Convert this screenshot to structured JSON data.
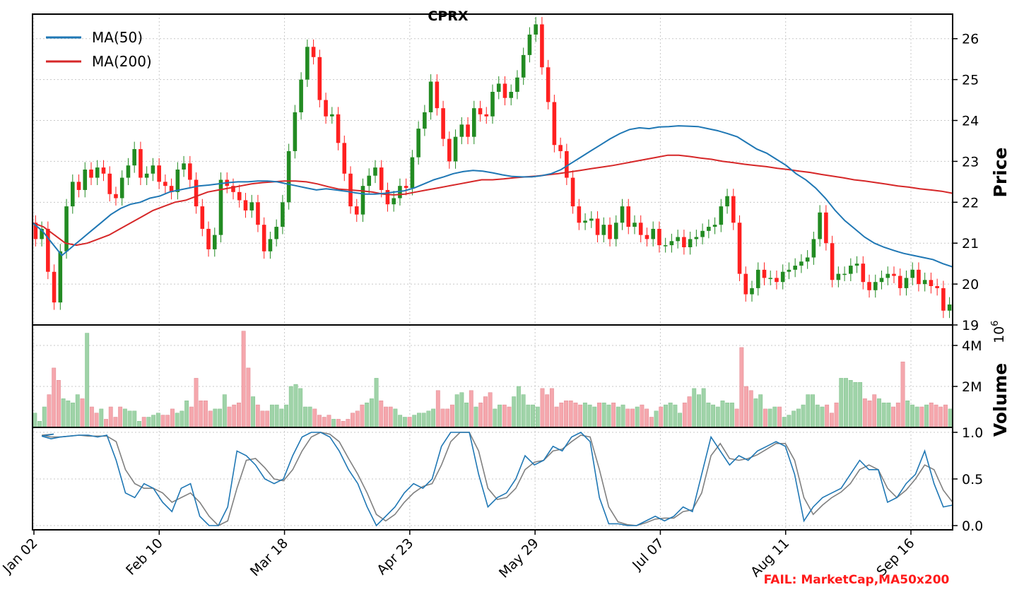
{
  "chart_data": {
    "type": "candlestick",
    "title": "CPRX",
    "status_text": "FAIL: MarketCap,MA50x200",
    "x_tick_labels": [
      "Jan 02",
      "Feb 10",
      "Mar 18",
      "Apr 23",
      "May 29",
      "Jul 07",
      "Aug 11",
      "Sep 16"
    ],
    "colors": {
      "up": "#228b22",
      "down": "#ff2020",
      "ma50": "#1f77b4",
      "ma200": "#d62728",
      "volume_up": "#9fd3a8",
      "volume_down": "#f5a7ad",
      "k_line": "#1f77b4",
      "d_line": "#808080"
    },
    "price_panel": {
      "ylabel": "Price",
      "ylim": [
        19,
        26.6
      ],
      "yticks": [
        "19",
        "20",
        "21",
        "22",
        "23",
        "24",
        "25",
        "26"
      ],
      "legend": [
        {
          "name": "MA(50)",
          "color": "#1f77b4"
        },
        {
          "name": "MA(200)",
          "color": "#d62728"
        }
      ],
      "closes": [
        21.1,
        21.35,
        20.3,
        19.55,
        20.8,
        21.9,
        22.5,
        22.3,
        22.8,
        22.6,
        22.85,
        22.7,
        22.2,
        22.1,
        22.6,
        22.9,
        23.3,
        22.6,
        22.7,
        22.9,
        22.5,
        22.4,
        22.25,
        22.8,
        22.95,
        22.55,
        21.9,
        21.35,
        20.85,
        21.2,
        22.55,
        22.4,
        22.25,
        22.05,
        21.8,
        22.0,
        21.45,
        20.8,
        21.1,
        21.4,
        22.0,
        23.25,
        24.2,
        25.0,
        25.8,
        25.55,
        24.5,
        24.1,
        24.15,
        23.45,
        22.7,
        21.9,
        21.7,
        22.4,
        22.65,
        22.85,
        22.3,
        21.95,
        22.1,
        22.4,
        22.35,
        23.1,
        23.8,
        24.2,
        24.95,
        24.3,
        23.55,
        23.0,
        23.6,
        23.9,
        23.6,
        24.3,
        24.15,
        24.1,
        24.7,
        24.9,
        24.55,
        24.7,
        25.05,
        25.6,
        26.1,
        26.35,
        25.3,
        24.45,
        23.4,
        23.25,
        22.6,
        21.9,
        21.5,
        21.55,
        21.6,
        21.2,
        21.45,
        21.1,
        21.5,
        21.9,
        21.4,
        21.5,
        21.2,
        21.1,
        21.35,
        20.95,
        20.95,
        21.05,
        21.15,
        20.9,
        21.1,
        21.15,
        21.3,
        21.4,
        21.45,
        21.9,
        22.15,
        21.5,
        20.25,
        19.75,
        19.9,
        20.35,
        20.15,
        20.15,
        20.05,
        20.3,
        20.35,
        20.45,
        20.55,
        20.65,
        21.1,
        21.75,
        21.0,
        20.1,
        20.25,
        20.25,
        20.45,
        20.5,
        20.05,
        19.85,
        20.05,
        20.15,
        20.25,
        20.2,
        19.9,
        20.15,
        20.35,
        20.0,
        20.1,
        19.95,
        19.9,
        19.35,
        19.5
      ],
      "ma50": [
        21.5,
        21.3,
        21.0,
        20.7,
        20.9,
        21.1,
        21.3,
        21.5,
        21.7,
        21.85,
        21.95,
        22.0,
        22.1,
        22.15,
        22.25,
        22.3,
        22.35,
        22.4,
        22.42,
        22.45,
        22.48,
        22.5,
        22.5,
        22.52,
        22.52,
        22.5,
        22.45,
        22.4,
        22.35,
        22.3,
        22.33,
        22.3,
        22.27,
        22.23,
        22.2,
        22.2,
        22.22,
        22.25,
        22.28,
        22.35,
        22.45,
        22.55,
        22.62,
        22.7,
        22.75,
        22.78,
        22.76,
        22.72,
        22.67,
        22.63,
        22.62,
        22.62,
        22.65,
        22.7,
        22.8,
        22.95,
        23.1,
        23.25,
        23.4,
        23.55,
        23.68,
        23.78,
        23.82,
        23.8,
        23.84,
        23.85,
        23.87,
        23.86,
        23.85,
        23.8,
        23.75,
        23.68,
        23.6,
        23.45,
        23.3,
        23.2,
        23.05,
        22.9,
        22.7,
        22.55,
        22.35,
        22.1,
        21.8,
        21.55,
        21.35,
        21.15,
        21.0,
        20.9,
        20.82,
        20.75,
        20.7,
        20.65,
        20.6,
        20.5,
        20.42
      ],
      "ma200": [
        21.5,
        21.4,
        21.2,
        21.0,
        20.95,
        21.0,
        21.1,
        21.2,
        21.35,
        21.5,
        21.65,
        21.8,
        21.9,
        22.0,
        22.05,
        22.15,
        22.25,
        22.3,
        22.35,
        22.4,
        22.45,
        22.48,
        22.5,
        22.52,
        22.52,
        22.5,
        22.45,
        22.38,
        22.32,
        22.3,
        22.28,
        22.25,
        22.2,
        22.18,
        22.2,
        22.25,
        22.3,
        22.35,
        22.4,
        22.45,
        22.5,
        22.55,
        22.55,
        22.57,
        22.6,
        22.62,
        22.64,
        22.67,
        22.7,
        22.74,
        22.78,
        22.82,
        22.86,
        22.9,
        22.95,
        23.0,
        23.05,
        23.1,
        23.15,
        23.15,
        23.12,
        23.08,
        23.05,
        23.0,
        22.97,
        22.93,
        22.9,
        22.87,
        22.83,
        22.8,
        22.76,
        22.73,
        22.68,
        22.64,
        22.6,
        22.55,
        22.52,
        22.48,
        22.44,
        22.4,
        22.37,
        22.33,
        22.3,
        22.27,
        22.22
      ]
    },
    "volume_panel": {
      "ylabel": "Volume",
      "scale_label": "1e6",
      "ylim": [
        0,
        5
      ],
      "yticks": [
        "2M",
        "4M"
      ],
      "values": [
        0.7,
        0.3,
        1.0,
        1.6,
        2.9,
        2.3,
        1.4,
        1.3,
        1.2,
        1.6,
        1.4,
        4.6,
        1.0,
        0.7,
        0.9,
        0.4,
        1.0,
        0.5,
        1.0,
        0.9,
        0.8,
        0.8,
        0.3,
        0.5,
        0.5,
        0.6,
        0.7,
        0.6,
        0.6,
        0.9,
        0.7,
        0.8,
        1.3,
        1.0,
        2.4,
        1.3,
        1.3,
        0.8,
        0.9,
        0.9,
        1.6,
        1.0,
        1.1,
        1.2,
        4.7,
        2.9,
        1.5,
        1.1,
        0.8,
        0.8,
        1.1,
        1.1,
        0.9,
        1.1,
        2.0,
        2.1,
        1.9,
        1.0,
        1.0,
        0.9,
        0.6,
        0.5,
        0.6,
        0.4,
        0.4,
        0.3,
        0.4,
        0.7,
        0.8,
        1.1,
        1.2,
        1.4,
        2.4,
        1.3,
        1.0,
        1.0,
        0.9,
        0.6,
        0.5,
        0.5,
        0.6,
        0.7,
        0.7,
        0.8,
        0.9,
        1.8,
        0.9,
        0.9,
        1.1,
        1.6,
        1.7,
        1.2,
        1.8,
        1.0,
        1.2,
        1.5,
        1.7,
        0.9,
        1.1,
        1.1,
        1.0,
        1.5,
        2.0,
        1.6,
        1.1,
        1.1,
        1.0,
        1.9,
        1.6,
        1.9,
        1.0,
        1.2,
        1.3,
        1.3,
        1.2,
        1.1,
        1.2,
        1.1,
        1.0,
        1.2,
        1.2,
        1.1,
        1.2,
        1.0,
        1.1,
        0.9,
        0.9,
        1.0,
        1.1,
        0.9,
        0.5,
        0.8,
        1.0,
        1.1,
        1.2,
        1.1,
        0.7,
        1.2,
        1.5,
        1.9,
        1.6,
        1.9,
        1.2,
        1.1,
        1.0,
        1.3,
        1.2,
        1.2,
        0.9,
        3.9,
        2.0,
        1.8,
        1.4,
        1.6,
        0.9,
        0.9,
        1.0,
        1.0,
        0.5,
        0.6,
        0.8,
        0.9,
        1.1,
        1.6,
        1.6,
        1.1,
        1.0,
        1.1,
        0.7,
        1.2,
        2.4,
        2.4,
        2.3,
        2.2,
        2.2,
        1.4,
        1.3,
        1.6,
        1.4,
        1.2,
        1.2,
        1.0,
        1.2,
        3.2,
        1.3,
        1.1,
        1.0,
        1.0,
        1.1,
        1.2,
        1.1,
        1.0,
        1.1,
        0.9
      ]
    },
    "oscillator_panel": {
      "ylim": [
        0,
        1
      ],
      "yticks": [
        "0.0",
        "0.5",
        "1.0"
      ],
      "k": [
        0.98,
        0.96,
        0.93,
        0.95,
        0.96,
        0.97,
        0.97,
        0.95,
        0.97,
        0.7,
        0.35,
        0.3,
        0.45,
        0.4,
        0.25,
        0.15,
        0.4,
        0.45,
        0.1,
        0.0,
        0.0,
        0.2,
        0.8,
        0.75,
        0.65,
        0.5,
        0.45,
        0.5,
        0.75,
        0.95,
        1.0,
        1.0,
        0.95,
        0.8,
        0.6,
        0.45,
        0.2,
        0.0,
        0.1,
        0.2,
        0.35,
        0.45,
        0.4,
        0.5,
        0.85,
        1.0,
        1.0,
        1.0,
        0.55,
        0.2,
        0.3,
        0.35,
        0.5,
        0.75,
        0.65,
        0.7,
        0.85,
        0.8,
        0.95,
        1.0,
        0.9,
        0.3,
        0.02,
        0.02,
        0.0,
        0.0,
        0.05,
        0.1,
        0.05,
        0.1,
        0.2,
        0.15,
        0.55,
        0.95,
        0.8,
        0.65,
        0.75,
        0.7,
        0.8,
        0.85,
        0.9,
        0.85,
        0.55,
        0.05,
        0.2,
        0.3,
        0.35,
        0.4,
        0.55,
        0.7,
        0.6,
        0.6,
        0.25,
        0.3,
        0.45,
        0.55,
        0.8,
        0.45,
        0.2,
        0.22
      ],
      "d": [
        0.98,
        0.97,
        0.95,
        0.95,
        0.96,
        0.97,
        0.96,
        0.96,
        0.96,
        0.9,
        0.6,
        0.45,
        0.4,
        0.4,
        0.35,
        0.25,
        0.3,
        0.35,
        0.25,
        0.1,
        0.0,
        0.05,
        0.4,
        0.7,
        0.72,
        0.62,
        0.5,
        0.48,
        0.6,
        0.8,
        0.95,
        1.0,
        0.98,
        0.9,
        0.72,
        0.55,
        0.35,
        0.12,
        0.05,
        0.12,
        0.25,
        0.35,
        0.42,
        0.45,
        0.65,
        0.9,
        1.0,
        1.0,
        0.8,
        0.4,
        0.28,
        0.3,
        0.4,
        0.6,
        0.68,
        0.7,
        0.8,
        0.82,
        0.9,
        0.97,
        0.95,
        0.6,
        0.2,
        0.04,
        0.01,
        0.0,
        0.03,
        0.07,
        0.08,
        0.08,
        0.15,
        0.17,
        0.35,
        0.75,
        0.88,
        0.72,
        0.7,
        0.72,
        0.76,
        0.82,
        0.88,
        0.88,
        0.7,
        0.3,
        0.12,
        0.22,
        0.3,
        0.36,
        0.45,
        0.6,
        0.65,
        0.6,
        0.4,
        0.3,
        0.38,
        0.5,
        0.65,
        0.6,
        0.38,
        0.25
      ]
    }
  }
}
